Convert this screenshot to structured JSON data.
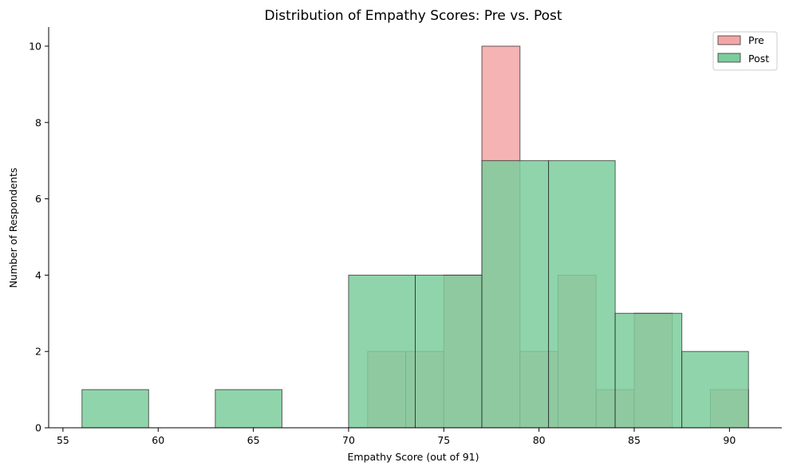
{
  "chart_data": {
    "type": "bar",
    "title": "Distribution of Empathy Scores: Pre vs. Post",
    "xlabel": "Empathy Score (out of 91)",
    "ylabel": "Number of Respondents",
    "xlim": [
      54.25,
      92.75
    ],
    "ylim": [
      0,
      10.5
    ],
    "xticks": [
      55,
      60,
      65,
      70,
      75,
      80,
      85,
      90
    ],
    "yticks": [
      0,
      2,
      4,
      6,
      8,
      10
    ],
    "grid": false,
    "legend_position": "top-right",
    "series": [
      {
        "name": "Pre",
        "color": "#f4a6a6",
        "bin_edges": [
          71,
          73,
          75,
          77,
          79,
          81,
          83,
          85,
          87,
          89,
          91
        ],
        "counts": [
          2,
          2,
          4,
          10,
          2,
          4,
          1,
          3,
          0,
          1
        ]
      },
      {
        "name": "Post",
        "color": "#7ccc9c",
        "bin_edges": [
          56,
          59.5,
          63,
          66.5,
          70,
          73.5,
          77,
          80.5,
          84,
          87.5,
          91
        ],
        "counts": [
          1,
          0,
          1,
          0,
          4,
          4,
          7,
          7,
          3,
          2
        ]
      }
    ]
  }
}
